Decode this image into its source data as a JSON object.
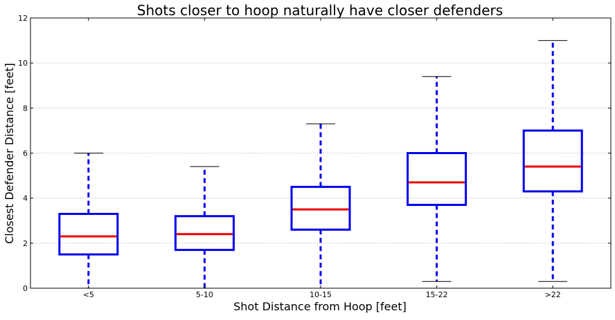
{
  "chart_data": {
    "type": "box",
    "title": "Shots closer to hoop naturally have closer defenders",
    "xlabel": "Shot Distance from Hoop [feet]",
    "ylabel": "Closest Defender Distance [feet]",
    "ylim": [
      0,
      12
    ],
    "yticks": [
      "0",
      "2",
      "4",
      "6",
      "8",
      "10",
      "12"
    ],
    "grid": "horizontal dotted",
    "categories": [
      "<5",
      "5-10",
      "10-15",
      "15-22",
      ">22"
    ],
    "boxes": [
      {
        "category": "<5",
        "whisker_low": 0.0,
        "q1": 1.5,
        "median": 2.3,
        "q3": 3.3,
        "whisker_high": 6.0
      },
      {
        "category": "5-10",
        "whisker_low": 0.0,
        "q1": 1.7,
        "median": 2.4,
        "q3": 3.2,
        "whisker_high": 5.4
      },
      {
        "category": "10-15",
        "whisker_low": 0.0,
        "q1": 2.6,
        "median": 3.5,
        "q3": 4.5,
        "whisker_high": 7.3
      },
      {
        "category": "15-22",
        "whisker_low": 0.3,
        "q1": 3.7,
        "median": 4.7,
        "q3": 6.0,
        "whisker_high": 9.4
      },
      {
        "category": ">22",
        "whisker_low": 0.3,
        "q1": 4.3,
        "median": 5.4,
        "q3": 7.0,
        "whisker_high": 11.0
      }
    ],
    "colors": {
      "box": "#0000ee",
      "median": "#ee0000",
      "cap": "#000000",
      "grid": "#aaaaaa"
    }
  }
}
